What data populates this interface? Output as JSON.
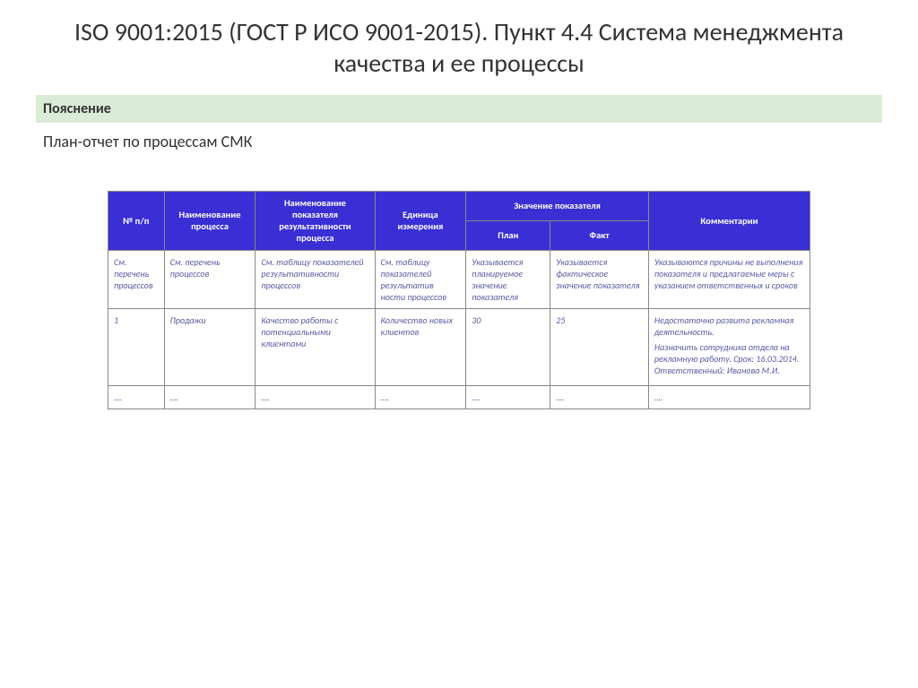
{
  "title": "ISO 9001:2015 (ГОСТ Р ИСО 9001-2015). Пункт 4.4 Система менеджмента качества и ее процессы",
  "explanation": {
    "header": "Пояснение",
    "body": "План-отчет по процессам СМК"
  },
  "table": {
    "header_bg": "#3a2fd4",
    "header_fg": "#ffffff",
    "cell_fg": "#5a5aa5",
    "border_color": "#888888",
    "columns": {
      "num": "№ п/п",
      "name": "Наименование процесса",
      "ind": "Наименование показателя результативности процесса",
      "unit": "Единица измерения",
      "group": "Значение показателя",
      "plan": "План",
      "fact": "Факт",
      "comm": "Комментарии"
    },
    "rows": [
      {
        "num": "См. перечень процессов",
        "name": "См. перечень процессов",
        "ind": "См. таблицу показателей результативности процессов",
        "unit": "См. таблицу показателей результатив ности процессов",
        "plan": "Указывается планируемое значение показателя",
        "fact": "Указывается фактическое значение показателя",
        "comm": "Указываются причины не выполнения показателя и предлагаемые меры с указанием ответственных и сроков"
      },
      {
        "num": "1",
        "name": "Продажи",
        "ind": "Качество работы с потенциальными клиентами",
        "unit": "Количество новых клиентов",
        "plan": "30",
        "fact": "25",
        "comm_lines": [
          "Недостаточно развита рекламная деятельность.",
          "Назначить сотрудника отдела на рекламную работу. Срок: 16.03.2014. Ответственный: Иванова М.И."
        ]
      },
      {
        "num": "….",
        "name": "….",
        "ind": "….",
        "unit": "….",
        "plan": "….",
        "fact": "….",
        "comm": "…."
      }
    ]
  }
}
